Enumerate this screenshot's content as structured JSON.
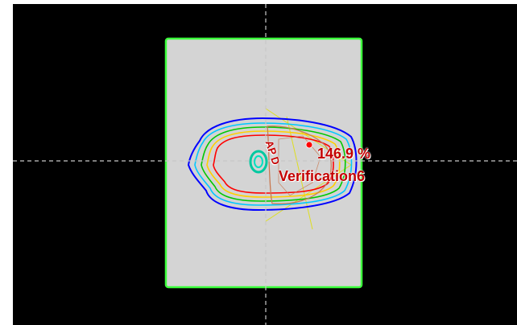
{
  "viewer": {
    "dose_max_label": "146.9 %",
    "plan_label": "Verification6",
    "beam_label": "AP D"
  },
  "colors": {
    "background": "#000000",
    "phantom_fill": "#d4d4d4",
    "phantom_outline": "#3cff3c",
    "crosshair": "#c8c8c8",
    "beam_edge": "#e0e000",
    "isodose_outer": "#0000ff",
    "isodose_mid": "#00c8ff",
    "isodose_green": "#00c800",
    "isodose_yellow": "#ffd000",
    "isodose_red": "#ff0000",
    "target_outline": "#c87850",
    "isocenter": "#00c8a0",
    "label_text": "#c40000"
  },
  "icons": {
    "dose_max_marker": "dose-max-point-icon",
    "isocenter": "isocenter-icon"
  }
}
